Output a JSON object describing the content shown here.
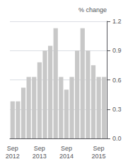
{
  "chart_data": {
    "type": "bar",
    "y_label": "% change",
    "categories": [
      "Sep\n2012",
      null,
      null,
      null,
      null,
      "Sep\n2013",
      null,
      null,
      null,
      null,
      "Sep\n2014",
      null,
      null,
      null,
      null,
      null,
      "Sep\n2015",
      null
    ],
    "values": [
      0.38,
      0.38,
      0.52,
      0.63,
      0.63,
      0.78,
      0.9,
      0.95,
      1.13,
      0.63,
      0.5,
      0.63,
      0.9,
      1.13,
      0.9,
      0.75,
      0.63,
      0.63
    ],
    "color": "#c8c8c8",
    "ylim": [
      0,
      1.2
    ],
    "yticks": [
      {
        "value": 0,
        "label": "0.0"
      },
      0.3,
      0.6,
      0.9,
      1.2
    ],
    "grid": true
  }
}
